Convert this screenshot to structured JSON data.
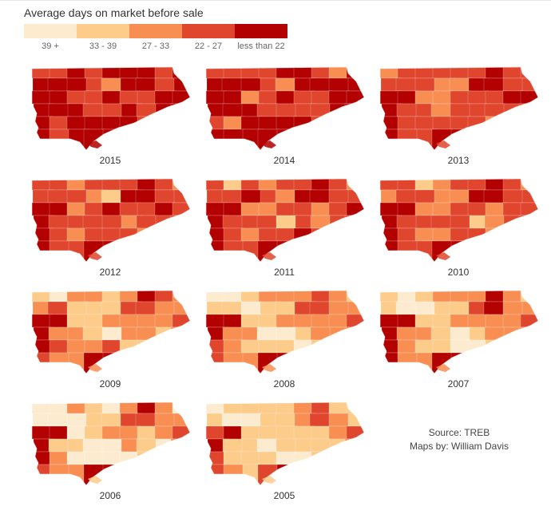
{
  "title": "Average days on market before sale",
  "legend": {
    "items": [
      {
        "label": "39 +",
        "color": "#fdebcf"
      },
      {
        "label": "33 - 39",
        "color": "#fdcb8a"
      },
      {
        "label": "27 - 33",
        "color": "#f98e52"
      },
      {
        "label": "22 - 27",
        "color": "#e0452d"
      },
      {
        "label": "less than 22",
        "color": "#b30000"
      }
    ]
  },
  "maps": [
    {
      "year": "2015",
      "levels": [
        3,
        3,
        4,
        3,
        4,
        4,
        4,
        3,
        4,
        4,
        4,
        4,
        3,
        2,
        4,
        4,
        3,
        4,
        4,
        4,
        3,
        3,
        4,
        3,
        3,
        4,
        4,
        4,
        4,
        4
      ]
    },
    {
      "year": "2014",
      "levels": [
        3,
        3,
        3,
        3,
        4,
        4,
        3,
        2,
        4,
        4,
        4,
        4,
        3,
        2,
        4,
        4,
        4,
        4,
        4,
        4,
        2,
        3,
        4,
        3,
        3,
        4,
        4,
        4,
        4,
        4
      ]
    },
    {
      "year": "2013",
      "levels": [
        2,
        3,
        3,
        3,
        3,
        3,
        4,
        3,
        3,
        3,
        3,
        3,
        2,
        2,
        4,
        4,
        3,
        3,
        4,
        4,
        2,
        2,
        3,
        3,
        3,
        4,
        4,
        4,
        3,
        3
      ]
    },
    {
      "year": "2012",
      "levels": [
        3,
        3,
        2,
        3,
        3,
        3,
        4,
        3,
        2,
        3,
        3,
        3,
        2,
        1,
        4,
        4,
        3,
        3,
        4,
        4,
        2,
        3,
        4,
        3,
        3,
        4,
        3,
        4,
        3,
        3
      ]
    },
    {
      "year": "2011",
      "levels": [
        3,
        1,
        3,
        2,
        3,
        3,
        4,
        3,
        2,
        3,
        3,
        4,
        3,
        2,
        4,
        4,
        3,
        3,
        4,
        4,
        2,
        2,
        3,
        3,
        2,
        3,
        4,
        4,
        3,
        3
      ]
    },
    {
      "year": "2010",
      "levels": [
        3,
        3,
        1,
        2,
        3,
        3,
        4,
        3,
        2,
        2,
        3,
        3,
        2,
        2,
        4,
        4,
        3,
        3,
        4,
        4,
        2,
        2,
        3,
        3,
        2,
        3,
        3,
        4,
        3,
        3
      ]
    },
    {
      "year": "2009",
      "levels": [
        1,
        0,
        2,
        2,
        1,
        2,
        4,
        3,
        2,
        2,
        3,
        1,
        1,
        1,
        3,
        3,
        2,
        2,
        4,
        4,
        1,
        1,
        2,
        2,
        2,
        2,
        3,
        4,
        2,
        2
      ]
    },
    {
      "year": "2008",
      "levels": [
        0,
        0,
        1,
        2,
        2,
        2,
        3,
        2,
        1,
        1,
        1,
        0,
        1,
        1,
        3,
        3,
        2,
        2,
        4,
        4,
        1,
        1,
        2,
        2,
        2,
        2,
        3,
        4,
        2,
        2
      ]
    },
    {
      "year": "2007",
      "levels": [
        1,
        0,
        1,
        2,
        2,
        2,
        4,
        2,
        1,
        1,
        0,
        0,
        1,
        1,
        3,
        4,
        2,
        2,
        4,
        4,
        1,
        1,
        2,
        2,
        2,
        2,
        3,
        4,
        2,
        2
      ]
    },
    {
      "year": "2006",
      "levels": [
        0,
        0,
        2,
        1,
        0,
        2,
        4,
        2,
        0,
        0,
        0,
        0,
        1,
        1,
        3,
        3,
        2,
        2,
        4,
        4,
        0,
        1,
        2,
        2,
        1,
        2,
        3,
        4,
        1,
        1
      ]
    },
    {
      "year": "2005",
      "levels": [
        0,
        1,
        1,
        1,
        1,
        2,
        3,
        1,
        1,
        1,
        0,
        0,
        1,
        1,
        2,
        3,
        2,
        1,
        3,
        4,
        1,
        1,
        1,
        1,
        1,
        2,
        3,
        4,
        1,
        1
      ]
    }
  ],
  "source": {
    "line1": "Source: TREB",
    "line2": "Maps by: William Davis"
  }
}
